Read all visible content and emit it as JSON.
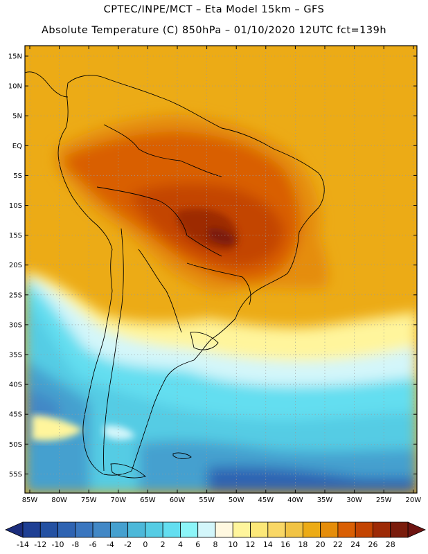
{
  "title_line1": "CPTEC/INPE/MCT –  Eta Model 15km – GFS",
  "title_line2": "Absolute Temperature (C) 850hPa – 01/10/2020 12UTC fct=139h",
  "lat_labels": [
    "15N",
    "10N",
    "5N",
    "EQ",
    "5S",
    "10S",
    "15S",
    "20S",
    "25S",
    "30S",
    "35S",
    "40S",
    "45S",
    "50S",
    "55S"
  ],
  "lon_labels": [
    "85W",
    "80W",
    "75W",
    "70W",
    "65W",
    "60W",
    "55W",
    "50W",
    "45W",
    "40W",
    "35W",
    "30W",
    "25W",
    "20W"
  ],
  "colorbar": {
    "labels": [
      "-14",
      "-12",
      "-10",
      "-8",
      "-6",
      "-4",
      "-2",
      "0",
      "2",
      "4",
      "6",
      "8",
      "10",
      "12",
      "14",
      "16",
      "18",
      "20",
      "22",
      "24",
      "26",
      "28"
    ],
    "colors": [
      "#1e3f94",
      "#2451a2",
      "#2e63b2",
      "#3a76bf",
      "#4288c6",
      "#45a0cf",
      "#4cb8d9",
      "#55cce4",
      "#63def0",
      "#8cf5f8",
      "#d3f6fa",
      "#fff8e0",
      "#fff59c",
      "#fce878",
      "#f9d765",
      "#f1c344",
      "#ecab16",
      "#e58d0a",
      "#d95f04",
      "#c34402",
      "#9d2a06",
      "#7a1c0c"
    ],
    "under_color": "#1b2d7c",
    "over_color": "#6e1411"
  },
  "colors": {
    "frame": "#000000",
    "grid": "#9a9a9a",
    "coast": "#000000"
  }
}
